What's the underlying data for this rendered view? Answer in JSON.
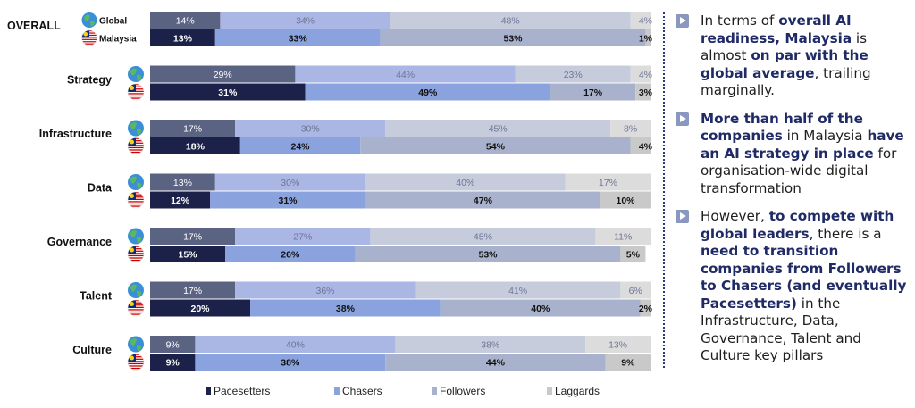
{
  "chart_data": {
    "type": "bar",
    "orientation": "horizontal-stacked-100",
    "groups": [
      {
        "label": "OVERALL",
        "series": [
          {
            "name": "Global",
            "values": [
              14,
              34,
              48,
              4
            ]
          },
          {
            "name": "Malaysia",
            "values": [
              13,
              33,
              53,
              1
            ]
          }
        ]
      },
      {
        "label": "Strategy",
        "series": [
          {
            "name": "Global",
            "values": [
              29,
              44,
              23,
              4
            ]
          },
          {
            "name": "Malaysia",
            "values": [
              31,
              49,
              17,
              3
            ]
          }
        ]
      },
      {
        "label": "Infrastructure",
        "series": [
          {
            "name": "Global",
            "values": [
              17,
              30,
              45,
              8
            ]
          },
          {
            "name": "Malaysia",
            "values": [
              18,
              24,
              54,
              4
            ]
          }
        ]
      },
      {
        "label": "Data",
        "series": [
          {
            "name": "Global",
            "values": [
              13,
              30,
              40,
              17
            ]
          },
          {
            "name": "Malaysia",
            "values": [
              12,
              31,
              47,
              10
            ]
          }
        ]
      },
      {
        "label": "Governance",
        "series": [
          {
            "name": "Global",
            "values": [
              17,
              27,
              45,
              11
            ]
          },
          {
            "name": "Malaysia",
            "values": [
              15,
              26,
              53,
              5
            ]
          }
        ]
      },
      {
        "label": "Talent",
        "series": [
          {
            "name": "Global",
            "values": [
              17,
              36,
              41,
              6
            ]
          },
          {
            "name": "Malaysia",
            "values": [
              20,
              38,
              40,
              2
            ]
          }
        ]
      },
      {
        "label": "Culture",
        "series": [
          {
            "name": "Global",
            "values": [
              9,
              40,
              38,
              13
            ]
          },
          {
            "name": "Malaysia",
            "values": [
              9,
              38,
              44,
              9
            ]
          }
        ]
      }
    ],
    "segments": [
      "Pacesetters",
      "Chasers",
      "Followers",
      "Laggards"
    ],
    "colors": {
      "global": [
        "#5b6383",
        "#aab6e4",
        "#c6ccdc",
        "#dcdcdc"
      ],
      "malaysia": [
        "#1c214a",
        "#8aa2de",
        "#a9b2cc",
        "#c9c9c9"
      ]
    },
    "series_labels": {
      "global": "Global",
      "malaysia": "Malaysia"
    },
    "legend": {
      "position": "bottom",
      "items": [
        {
          "label": "Pacesetters",
          "color": "#1c214a"
        },
        {
          "label": "Chasers",
          "color": "#8aa2de"
        },
        {
          "label": "Followers",
          "color": "#a9b2cc"
        },
        {
          "label": "Laggards",
          "color": "#c9c9c9"
        }
      ]
    }
  },
  "notes": [
    [
      {
        "t": "In terms of ",
        "b": false
      },
      {
        "t": "overall AI readiness, Malaysia",
        "b": true
      },
      {
        "t": " is almost ",
        "b": false
      },
      {
        "t": "on par with the global average",
        "b": true
      },
      {
        "t": ", trailing marginally.",
        "b": false
      }
    ],
    [
      {
        "t": "More than half of the companies",
        "b": true
      },
      {
        "t": " in Malaysia ",
        "b": false
      },
      {
        "t": "have an AI strategy in place",
        "b": true
      },
      {
        "t": " for organisation-wide digital transformation",
        "b": false
      }
    ],
    [
      {
        "t": "However, ",
        "b": false
      },
      {
        "t": "to compete with global leaders",
        "b": true
      },
      {
        "t": ", there is a ",
        "b": false
      },
      {
        "t": "need to transition companies from Followers to Chasers (and eventually Pacesetters)",
        "b": true
      },
      {
        "t": " in the Infrastructure, Data, Governance, Talent and Culture key pillars",
        "b": false
      }
    ]
  ]
}
